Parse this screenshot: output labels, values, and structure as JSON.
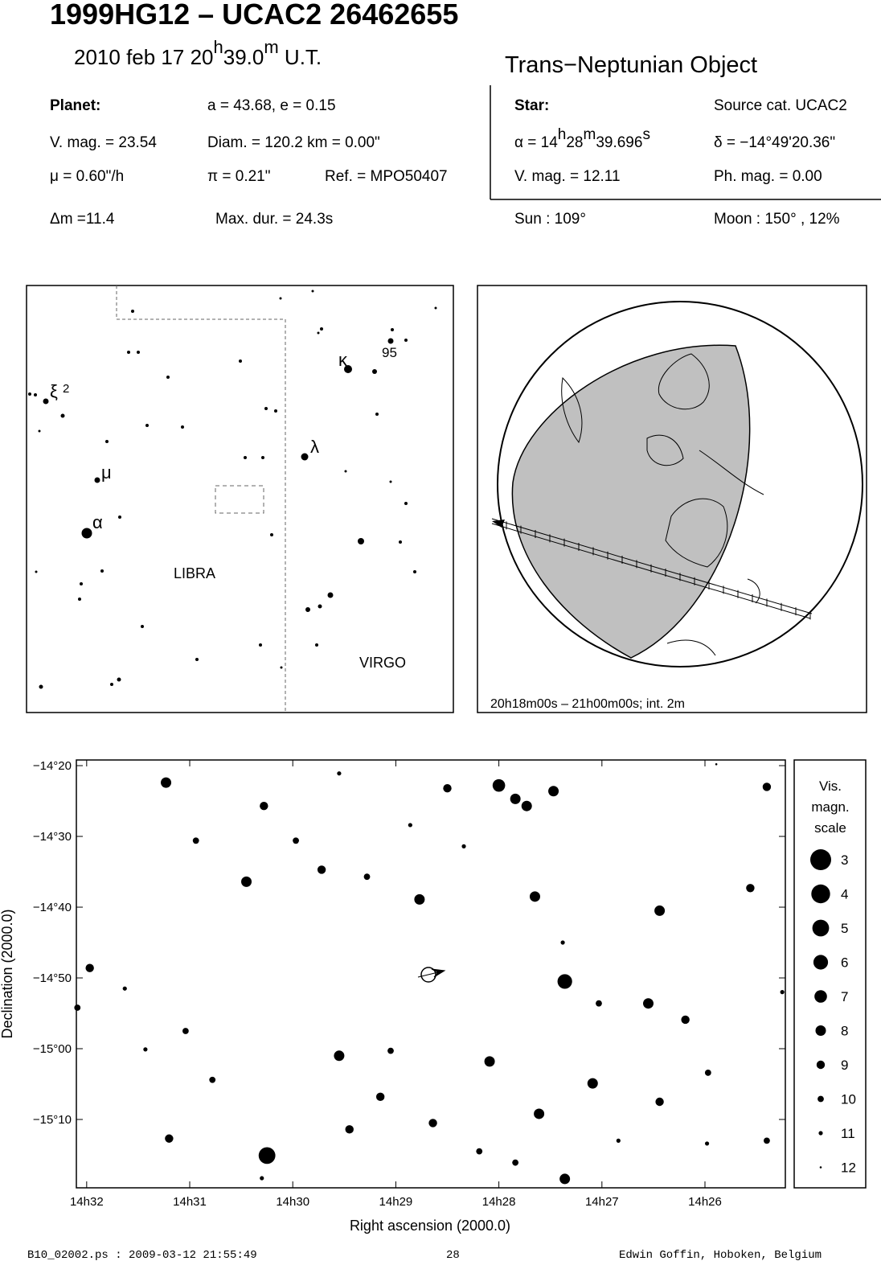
{
  "header": {
    "title": "1999HG12  –  UCAC2 26462655",
    "date_parts": [
      "2010 feb 17  20",
      "h",
      "39.0",
      "m",
      " U.T."
    ],
    "object_type": "Trans−Neptunian Object"
  },
  "info": {
    "planet_label": "Planet:",
    "orbit": "a = 43.68, e = 0.15",
    "planet_vmag": "V. mag. = 23.54",
    "diameter": "Diam. = 120.2 km = 0.00\"",
    "motion": "μ =  0.60\"/h",
    "parallax": "π =  0.21\"",
    "reference": "Ref. = MPO50407",
    "star_label": "Star:",
    "source": "Source cat.  UCAC2",
    "ra_parts": [
      "α = 14",
      "h",
      "28",
      "m",
      "39.696",
      "s"
    ],
    "dec": "δ = −14°49'20.36\"",
    "star_vmag": "V. mag. = 12.11",
    "phmag": "Ph. mag. =  0.00",
    "delta_m": "Δm =11.4",
    "max_dur": "Max. dur. = 24.3s",
    "sun": "Sun : 109°",
    "moon": "Moon : 150° , 12%"
  },
  "finder": {
    "labels": [
      "ξ",
      "2",
      "μ",
      "α",
      "κ",
      "95",
      "λ",
      "LIBRA",
      "VIRGO"
    ]
  },
  "globe": {
    "caption": "20h18m00s – 21h00m00s; int.  2m"
  },
  "chart_data": {
    "type": "scatter",
    "xlabel": "Right ascension (2000.0)",
    "ylabel": "Declination (2000.0)",
    "color": "#000000",
    "xlim": [
      872.1,
      865.22
    ],
    "ylim": [
      -919.66,
      -859.2
    ],
    "xticks": [
      {
        "value": 872,
        "label": "14h32"
      },
      {
        "value": 871,
        "label": "14h31"
      },
      {
        "value": 870,
        "label": "14h30"
      },
      {
        "value": 869,
        "label": "14h29"
      },
      {
        "value": 868,
        "label": "14h28"
      },
      {
        "value": 867,
        "label": "14h27"
      },
      {
        "value": 866,
        "label": "14h26"
      }
    ],
    "yticks": [
      {
        "value": -860,
        "label": "−14°20"
      },
      {
        "value": -870,
        "label": "−14°30"
      },
      {
        "value": -880,
        "label": "−14°40"
      },
      {
        "value": -890,
        "label": "−14°50"
      },
      {
        "value": -900,
        "label": "−15°00"
      },
      {
        "value": -910,
        "label": "−15°10"
      }
    ],
    "x": [
      870.25,
      867.36,
      868.0,
      867.84,
      867.73,
      867.47,
      868.77,
      867.65,
      870.45,
      869.55,
      868.09,
      871.23,
      866.44,
      866.55,
      867.09,
      867.61,
      868.64,
      866.19,
      865.56,
      868.5,
      870.28,
      869.72,
      869.15,
      869.45,
      871.2,
      871.97,
      870.94,
      869.97,
      869.28,
      867.84,
      867.36,
      866.44,
      865.97,
      865.4,
      865.4,
      868.19,
      870.78,
      872.09,
      867.03,
      869.05,
      871.04,
      869.55,
      868.86,
      868.34,
      867.38,
      871.63,
      871.43,
      866.84,
      865.98,
      865.25,
      865.89,
      870.3
    ],
    "y": [
      -915.1,
      -890.5,
      -862.8,
      -864.7,
      -865.7,
      -863.6,
      -878.9,
      -878.5,
      -876.4,
      -901.0,
      -901.8,
      -862.4,
      -880.5,
      -893.6,
      -904.9,
      -909.2,
      -910.5,
      -895.9,
      -877.3,
      -863.2,
      -865.7,
      -874.7,
      -906.8,
      -911.4,
      -912.7,
      -888.6,
      -870.6,
      -870.6,
      -875.7,
      -916.1,
      -918.4,
      -907.5,
      -903.4,
      -863.0,
      -913.0,
      -914.5,
      -904.4,
      -894.2,
      -893.6,
      -900.3,
      -897.5,
      -861.1,
      -868.4,
      -871.4,
      -885.0,
      -891.5,
      -900.1,
      -913.0,
      -913.4,
      -892.0,
      -859.8,
      -918.3
    ],
    "magnitudes": [
      5,
      6,
      7,
      8,
      8,
      8,
      8,
      8,
      8,
      8,
      8,
      8,
      8,
      8,
      8,
      8,
      9,
      9,
      9,
      9,
      9,
      9,
      9,
      9,
      9,
      9,
      10,
      10,
      10,
      10,
      8,
      9,
      10,
      9,
      10,
      10,
      10,
      10,
      10,
      10,
      10,
      11,
      11,
      11,
      11,
      11,
      11,
      11,
      11,
      11,
      12,
      11
    ],
    "legend_title": [
      "Vis.",
      "magn.",
      "scale"
    ],
    "legend_magnitudes": [
      3,
      4,
      5,
      6,
      7,
      8,
      9,
      10,
      11,
      12
    ]
  },
  "footer": {
    "file": "B10_02002.ps : 2009-03-12 21:55:49",
    "page": "28",
    "author": "Edwin Goffin, Hoboken, Belgium"
  }
}
